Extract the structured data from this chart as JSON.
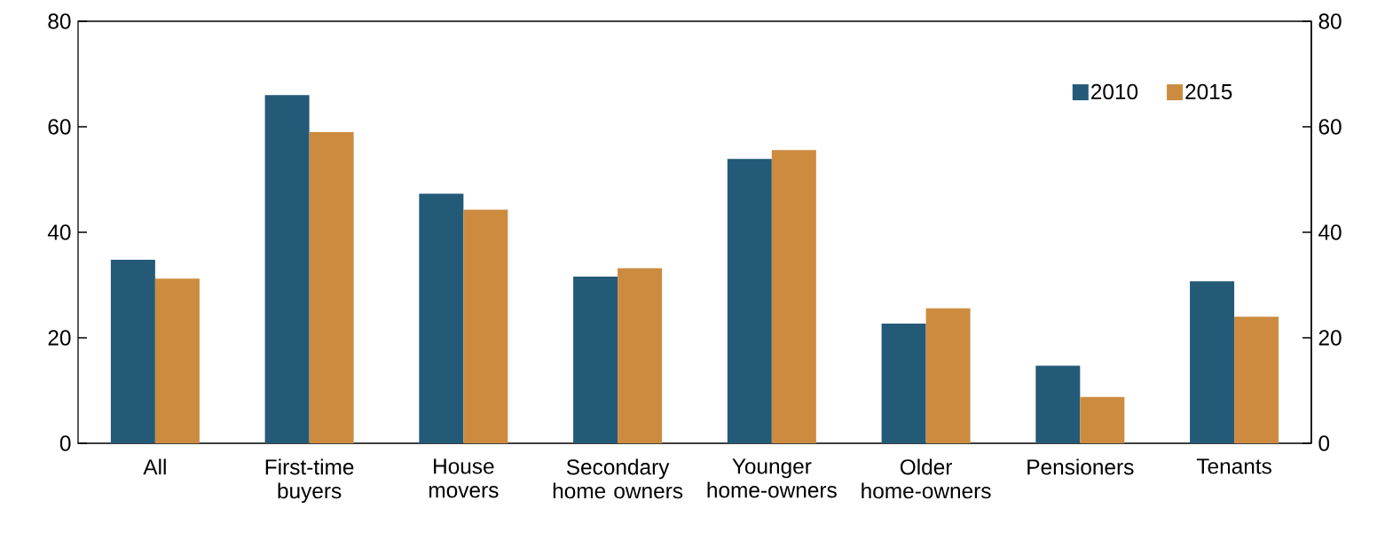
{
  "chart_data": {
    "type": "bar",
    "categories": [
      "All",
      "First-time buyers",
      "House movers",
      "Secondary home owners",
      "Younger home-owners",
      "Older home-owners",
      "Pensioners",
      "Tenants"
    ],
    "series": [
      {
        "name": "2010",
        "color": "#235a78",
        "values": [
          34.8,
          66.0,
          47.3,
          31.6,
          53.9,
          22.7,
          14.7,
          30.7
        ]
      },
      {
        "name": "2015",
        "color": "#cd8b40",
        "values": [
          31.2,
          59.0,
          44.3,
          33.2,
          55.6,
          25.6,
          8.8,
          24.0
        ]
      }
    ],
    "ylim": [
      0,
      80
    ],
    "yticks": [
      0,
      20,
      40,
      60,
      80
    ],
    "y2lim": [
      0,
      80
    ],
    "y2ticks": [
      0,
      20,
      40,
      60,
      80
    ],
    "legend": "top right"
  }
}
